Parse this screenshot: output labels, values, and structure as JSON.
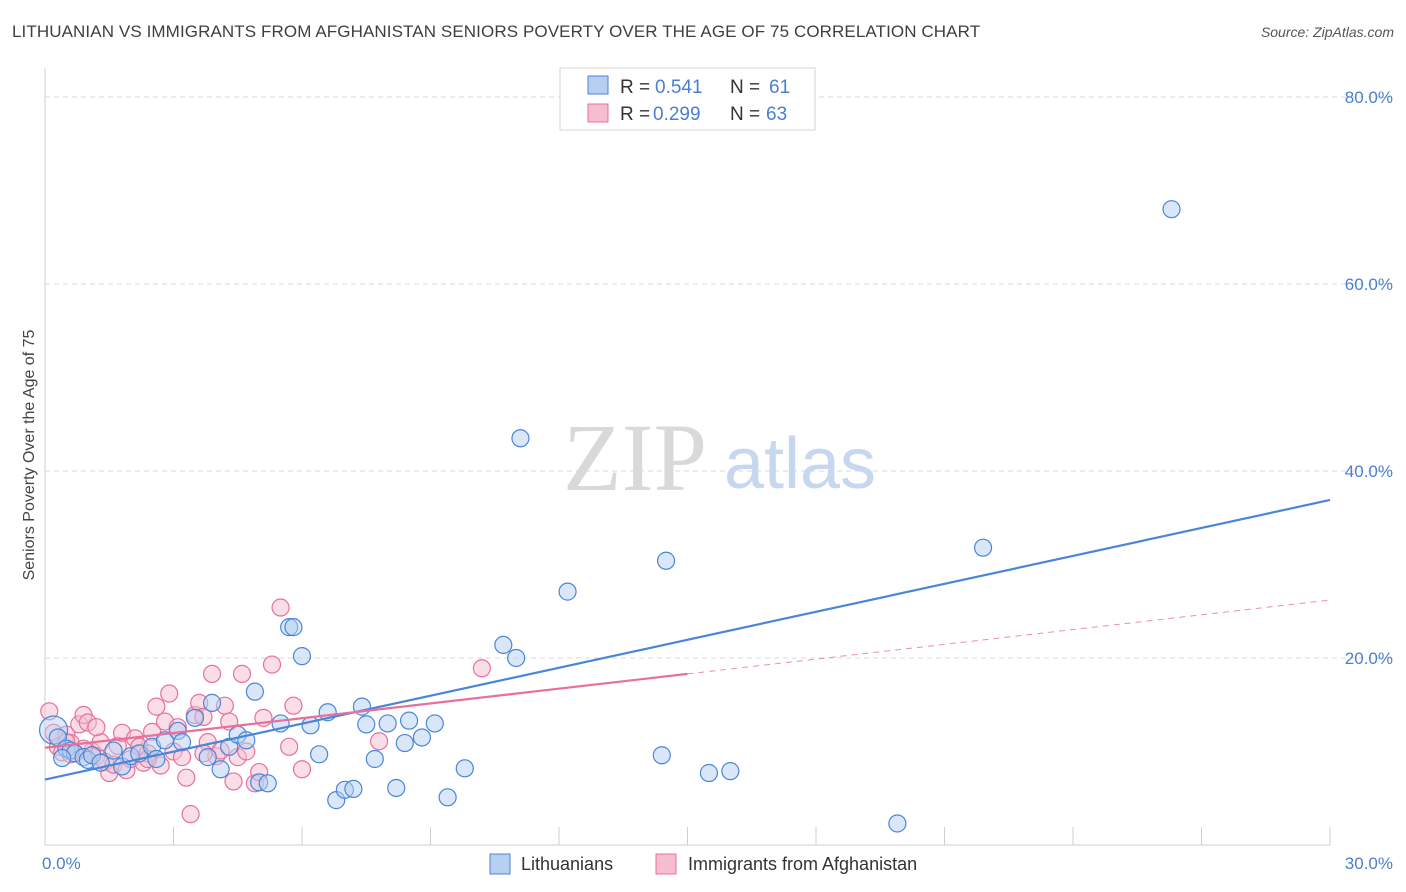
{
  "title": "LITHUANIAN VS IMMIGRANTS FROM AFGHANISTAN SENIORS POVERTY OVER THE AGE OF 75 CORRELATION CHART",
  "source": "Source: ZipAtlas.com",
  "watermark": {
    "zip": "ZIP",
    "atlas": "atlas"
  },
  "colors": {
    "blue": "#4a86d8",
    "blue_fill": "#b6cff1",
    "pink": "#e8709a",
    "pink_fill": "#f6bdd0",
    "tick_text": "#4a7fd0",
    "grid": "#d9d9d9"
  },
  "legend": {
    "r_label": "R =",
    "n_label": "N =",
    "entries": [
      {
        "r": "0.541",
        "n": "61",
        "color": "blue"
      },
      {
        "r": "0.299",
        "n": "63",
        "color": "pink"
      }
    ]
  },
  "bottom_legend": [
    "Lithuanians",
    "Immigrants from Afghanistan"
  ],
  "chart_data": {
    "type": "scatter",
    "ylabel": "Seniors Poverty Over the Age of 75",
    "xlim": [
      0,
      30
    ],
    "ylim": [
      0,
      80
    ],
    "x_ticks": [
      0,
      30
    ],
    "x_tick_labels": [
      "0.0%",
      "30.0%"
    ],
    "y_ticks": [
      20,
      40,
      60,
      80
    ],
    "y_tick_labels": [
      "20.0%",
      "40.0%",
      "60.0%",
      "80.0%"
    ],
    "grid": true,
    "series": [
      {
        "name": "Lithuanians",
        "color": "blue",
        "trend": {
          "x": [
            0,
            30
          ],
          "y": [
            7.0,
            36.9
          ],
          "dashed_x": null
        },
        "points": [
          [
            0.2,
            12.3
          ],
          [
            0.3,
            11.5
          ],
          [
            0.5,
            10.3
          ],
          [
            0.6,
            10.1
          ],
          [
            0.7,
            9.8
          ],
          [
            0.9,
            9.4
          ],
          [
            1.0,
            9.1
          ],
          [
            1.1,
            9.6
          ],
          [
            1.3,
            8.8
          ],
          [
            1.6,
            10.1
          ],
          [
            1.8,
            8.4
          ],
          [
            2.0,
            9.5
          ],
          [
            2.2,
            9.8
          ],
          [
            2.5,
            10.5
          ],
          [
            2.6,
            9.2
          ],
          [
            2.8,
            11.2
          ],
          [
            3.1,
            12.2
          ],
          [
            3.2,
            11.0
          ],
          [
            3.5,
            13.6
          ],
          [
            3.8,
            9.4
          ],
          [
            3.9,
            15.2
          ],
          [
            4.1,
            8.1
          ],
          [
            4.3,
            10.5
          ],
          [
            4.5,
            11.8
          ],
          [
            4.7,
            11.2
          ],
          [
            4.9,
            16.4
          ],
          [
            5.0,
            6.7
          ],
          [
            5.2,
            6.6
          ],
          [
            5.5,
            13.0
          ],
          [
            5.7,
            23.3
          ],
          [
            5.8,
            23.3
          ],
          [
            6.0,
            20.2
          ],
          [
            6.2,
            12.8
          ],
          [
            6.4,
            9.7
          ],
          [
            6.6,
            14.2
          ],
          [
            6.8,
            4.8
          ],
          [
            7.0,
            5.9
          ],
          [
            7.2,
            6.0
          ],
          [
            7.4,
            14.8
          ],
          [
            7.5,
            12.9
          ],
          [
            7.7,
            9.2
          ],
          [
            8.0,
            13.0
          ],
          [
            8.2,
            6.1
          ],
          [
            8.4,
            10.9
          ],
          [
            8.5,
            13.3
          ],
          [
            8.8,
            11.5
          ],
          [
            9.1,
            13.0
          ],
          [
            9.4,
            5.1
          ],
          [
            9.8,
            8.2
          ],
          [
            10.7,
            21.4
          ],
          [
            11.0,
            20.0
          ],
          [
            11.1,
            43.5
          ],
          [
            12.2,
            27.1
          ],
          [
            14.4,
            9.6
          ],
          [
            14.5,
            30.4
          ],
          [
            15.5,
            7.7
          ],
          [
            16.0,
            7.9
          ],
          [
            19.9,
            2.3
          ],
          [
            21.9,
            31.8
          ],
          [
            26.3,
            68.0
          ],
          [
            0.4,
            9.3
          ]
        ]
      },
      {
        "name": "Immigrants from Afghanistan",
        "color": "pink",
        "trend": {
          "x": [
            0,
            15
          ],
          "y": [
            10.4,
            18.3
          ],
          "dashed_x": [
            15,
            30
          ]
        },
        "points": [
          [
            0.1,
            14.3
          ],
          [
            0.2,
            12.0
          ],
          [
            0.3,
            10.5
          ],
          [
            0.4,
            9.9
          ],
          [
            0.5,
            11.8
          ],
          [
            0.6,
            10.9
          ],
          [
            0.7,
            9.8
          ],
          [
            0.8,
            12.9
          ],
          [
            0.9,
            13.9
          ],
          [
            1.0,
            13.1
          ],
          [
            1.1,
            10.0
          ],
          [
            1.2,
            9.5
          ],
          [
            1.3,
            11.0
          ],
          [
            1.4,
            8.9
          ],
          [
            1.5,
            7.7
          ],
          [
            1.6,
            8.6
          ],
          [
            1.7,
            10.6
          ],
          [
            1.8,
            12.0
          ],
          [
            1.9,
            8.0
          ],
          [
            2.0,
            9.2
          ],
          [
            2.1,
            11.4
          ],
          [
            2.2,
            10.5
          ],
          [
            2.3,
            8.8
          ],
          [
            2.4,
            9.8
          ],
          [
            2.5,
            12.1
          ],
          [
            2.6,
            14.8
          ],
          [
            2.7,
            8.5
          ],
          [
            2.8,
            13.2
          ],
          [
            2.9,
            16.2
          ],
          [
            3.0,
            10.0
          ],
          [
            3.1,
            12.6
          ],
          [
            3.2,
            9.4
          ],
          [
            3.3,
            7.2
          ],
          [
            3.4,
            3.3
          ],
          [
            3.5,
            13.9
          ],
          [
            3.6,
            15.2
          ],
          [
            3.7,
            13.7
          ],
          [
            3.8,
            11.0
          ],
          [
            3.9,
            18.3
          ],
          [
            4.0,
            9.5
          ],
          [
            4.1,
            10.1
          ],
          [
            4.2,
            14.9
          ],
          [
            4.3,
            13.2
          ],
          [
            4.4,
            6.8
          ],
          [
            4.5,
            9.4
          ],
          [
            4.6,
            18.3
          ],
          [
            4.7,
            10.0
          ],
          [
            4.9,
            6.6
          ],
          [
            5.0,
            7.8
          ],
          [
            5.1,
            13.6
          ],
          [
            5.3,
            19.3
          ],
          [
            5.5,
            25.4
          ],
          [
            5.7,
            10.5
          ],
          [
            5.8,
            14.9
          ],
          [
            6.0,
            8.1
          ],
          [
            7.8,
            11.1
          ],
          [
            10.2,
            18.9
          ],
          [
            0.5,
            11.0
          ],
          [
            0.6,
            9.7
          ],
          [
            1.2,
            12.6
          ],
          [
            2.4,
            9.2
          ],
          [
            3.7,
            9.8
          ],
          [
            0.9,
            10.3
          ]
        ]
      }
    ]
  }
}
